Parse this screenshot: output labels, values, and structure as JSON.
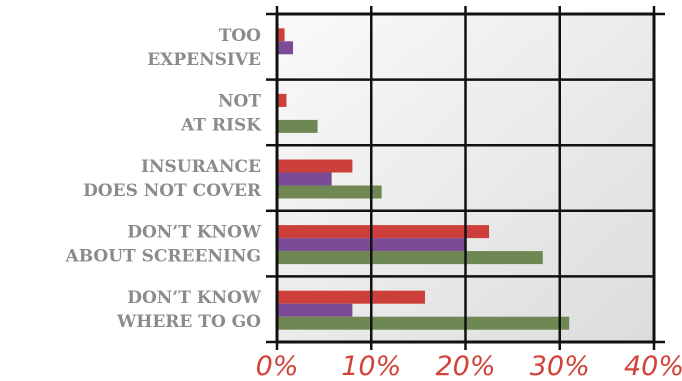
{
  "chart_data": {
    "type": "bar",
    "orientation": "horizontal",
    "categories": [
      [
        "TOO",
        "EXPENSIVE"
      ],
      [
        "NOT",
        "AT RISK"
      ],
      [
        "INSURANCE",
        "DOES NOT COVER"
      ],
      [
        "DON’T KNOW",
        "ABOUT SCREENING"
      ],
      [
        "DON’T KNOW",
        "WHERE TO GO"
      ]
    ],
    "series": [
      {
        "color": "#cc3f3a",
        "values": [
          0.8,
          1.0,
          8.0,
          22.5,
          15.7
        ]
      },
      {
        "color": "#7b4c95",
        "values": [
          1.7,
          0.0,
          5.8,
          20.0,
          8.0
        ]
      },
      {
        "color": "#6f8752",
        "values": [
          0.0,
          4.3,
          11.1,
          28.2,
          31.0
        ]
      }
    ],
    "xlim": [
      0,
      40
    ],
    "xticks": [
      "0%",
      "10%",
      "20%",
      "30%",
      "40%"
    ],
    "grid": true,
    "legend": "none",
    "colors": {
      "background_light": "#fafafa",
      "background_dark": "#dcdcdc",
      "grid": "#111111",
      "category_text": "#8b8b8b",
      "tick_text": "#d24238"
    }
  }
}
